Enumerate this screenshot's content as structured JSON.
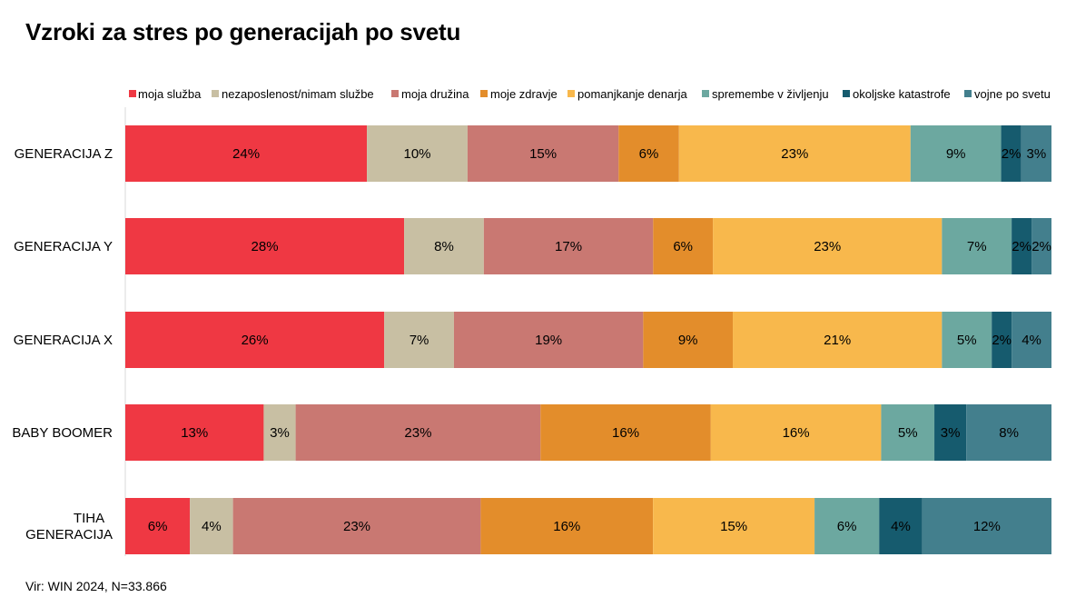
{
  "chart_data": {
    "type": "bar",
    "orientation": "horizontal",
    "stacked": true,
    "title": "Vzroki za stres po generacijah po svetu",
    "source": "Vir: WIN 2024, N=33.866",
    "legend_position": "top",
    "xlim": [
      0,
      100
    ],
    "categories": [
      "GENERACIJA Z",
      "GENERACIJA Y",
      "GENERACIJA X",
      "BABY BOOMER",
      "TIHA GENERACIJA"
    ],
    "series": [
      {
        "name": "moja služba",
        "color": "#ef3843",
        "values": [
          24,
          28,
          26,
          13,
          6
        ]
      },
      {
        "name": "nezaposlenost/nimam službe",
        "color": "#c8bfa3",
        "values": [
          10,
          8,
          7,
          3,
          4
        ]
      },
      {
        "name": "moja družina",
        "color": "#c97872",
        "values": [
          15,
          17,
          19,
          23,
          23
        ]
      },
      {
        "name": "moje zdravje",
        "color": "#e38d2b",
        "values": [
          6,
          6,
          9,
          16,
          16
        ]
      },
      {
        "name": "pomanjkanje denarja",
        "color": "#f8b84c",
        "values": [
          23,
          23,
          21,
          16,
          15
        ]
      },
      {
        "name": "spremembe v življenju",
        "color": "#6ca8a0",
        "values": [
          9,
          7,
          5,
          5,
          6
        ]
      },
      {
        "name": "okoljske katastrofe",
        "color": "#165b6e",
        "values": [
          2,
          2,
          2,
          3,
          4
        ]
      },
      {
        "name": "vojne po svetu",
        "color": "#437f8d",
        "values": [
          3,
          2,
          4,
          8,
          12
        ]
      }
    ]
  }
}
